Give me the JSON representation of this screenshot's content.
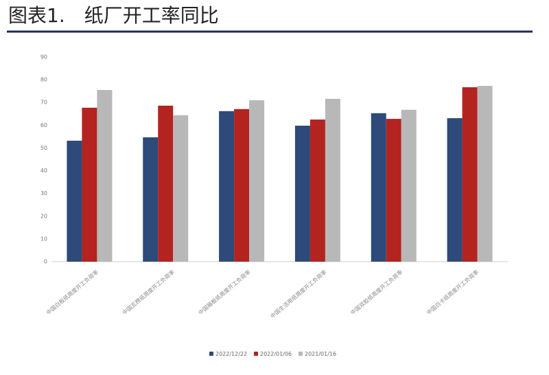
{
  "chart_data": {
    "type": "bar",
    "title": "图表1.　纸厂开工率同比",
    "categories": [
      "中国白板纸周度开工负荷率",
      "中国瓦楞纸周度开工负荷率",
      "中国箱板纸周度开工负荷率",
      "中国生活用纸周度开工负荷率",
      "中国双胶纸周度开工负荷率",
      "中国白卡纸周度开工负荷率"
    ],
    "series": [
      {
        "name": "2022/12/22",
        "color": "#2e4a7a",
        "values": [
          53.2,
          54.7,
          66.2,
          59.8,
          65.3,
          63.1
        ]
      },
      {
        "name": "2022/01/06",
        "color": "#b3231f",
        "values": [
          67.7,
          68.6,
          67.1,
          62.5,
          62.8,
          76.7
        ]
      },
      {
        "name": "2021/01/16",
        "color": "#b8b8b8",
        "values": [
          75.5,
          64.4,
          71.0,
          71.6,
          66.8,
          77.3
        ]
      }
    ],
    "ylim": [
      0,
      90
    ],
    "yticks": [
      0,
      10,
      20,
      30,
      40,
      50,
      60,
      70,
      80,
      90
    ],
    "grid": false
  }
}
